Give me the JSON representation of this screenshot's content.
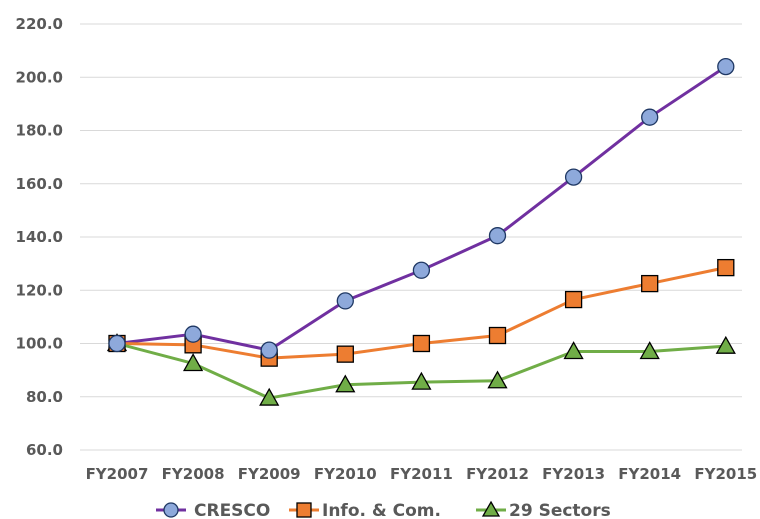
{
  "chart_data": {
    "type": "line",
    "categories": [
      "FY2007",
      "FY2008",
      "FY2009",
      "FY2010",
      "FY2011",
      "FY2012",
      "FY2013",
      "FY2014",
      "FY2015"
    ],
    "series": [
      {
        "name": "CRESCO",
        "values": [
          100.0,
          103.5,
          97.5,
          116.0,
          127.5,
          140.5,
          162.5,
          185.0,
          204.0
        ],
        "color": "#7030A0",
        "marker": "circle",
        "marker_fill": "#8EA9DB"
      },
      {
        "name": "Info. & Com.",
        "values": [
          100.0,
          99.5,
          94.5,
          96.0,
          100.0,
          103.0,
          116.5,
          122.5,
          128.5
        ],
        "color": "#ED7D31",
        "marker": "square",
        "marker_fill": "#ED7D31"
      },
      {
        "name": "29 Sectors",
        "values": [
          100.0,
          92.5,
          79.5,
          84.5,
          85.5,
          86.0,
          97.0,
          97.0,
          99.0
        ],
        "color": "#70AD47",
        "marker": "triangle",
        "marker_fill": "#70AD47"
      }
    ],
    "yticks": [
      "60.0",
      "80.0",
      "100.0",
      "120.0",
      "140.0",
      "160.0",
      "180.0",
      "200.0",
      "220.0"
    ],
    "ylim": [
      60,
      220
    ],
    "grid": true,
    "legend_position": "bottom",
    "title": "",
    "xlabel": "",
    "ylabel": ""
  }
}
